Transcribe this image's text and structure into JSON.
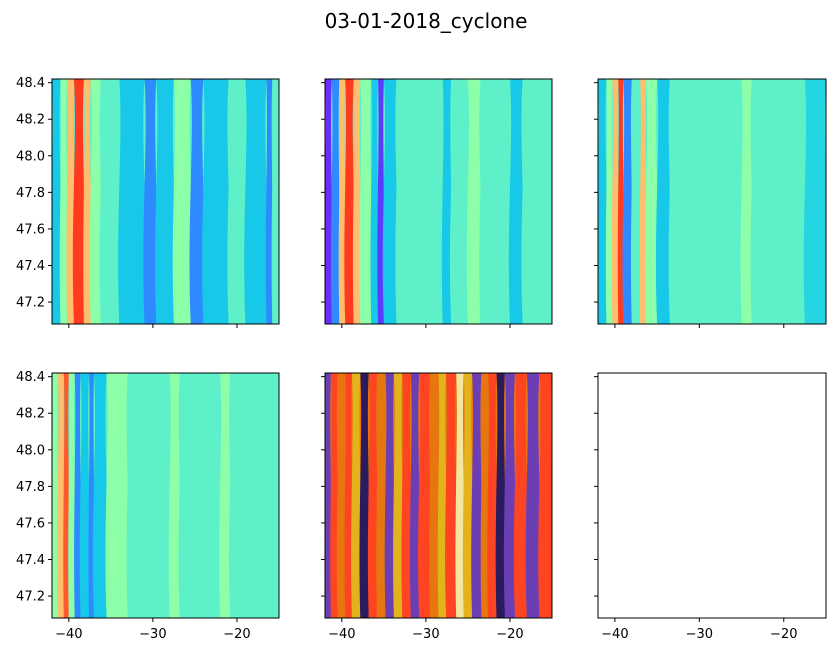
{
  "figure": {
    "title": "03-01-2018_cyclone"
  },
  "chart_data": [
    {
      "type": "contour",
      "panel": "row1-col1",
      "colormap": "rainbow",
      "xlim": [
        -42,
        -15
      ],
      "ylim": [
        47.08,
        48.42
      ],
      "x_ticks": [
        -40,
        -30,
        -20
      ],
      "y_ticks": [
        47.2,
        47.4,
        47.6,
        47.8,
        48.0,
        48.2,
        48.4
      ],
      "x_tick_labels_shown": false,
      "y_tick_labels_shown": true,
      "background": "#5ef0c8",
      "bands": [
        {
          "x0": -42,
          "x1": -41,
          "color": "#17c8e8"
        },
        {
          "x0": -41,
          "x1": -40.2,
          "color": "#8cffa8"
        },
        {
          "x0": -40.2,
          "x1": -39.4,
          "color": "#ffbe6e"
        },
        {
          "x0": -39.4,
          "x1": -38.2,
          "color": "#ff3a1e"
        },
        {
          "x0": -38.2,
          "x1": -37.4,
          "color": "#ffbe6e"
        },
        {
          "x0": -37.4,
          "x1": -36.2,
          "color": "#8cffa8"
        },
        {
          "x0": -36.2,
          "x1": -34,
          "color": "#5ef0c8"
        },
        {
          "x0": -34,
          "x1": -31,
          "color": "#17c8e8"
        },
        {
          "x0": -31,
          "x1": -29.6,
          "color": "#2e8bff"
        },
        {
          "x0": -29.6,
          "x1": -27.5,
          "color": "#17c8e8"
        },
        {
          "x0": -27.5,
          "x1": -25.5,
          "color": "#8cffa8"
        },
        {
          "x0": -25.5,
          "x1": -24,
          "color": "#2e8bff"
        },
        {
          "x0": -24,
          "x1": -21,
          "color": "#17c8e8"
        },
        {
          "x0": -21,
          "x1": -19,
          "color": "#5ef0c8"
        },
        {
          "x0": -19,
          "x1": -16.5,
          "color": "#17c8e8"
        },
        {
          "x0": -16.5,
          "x1": -15.8,
          "color": "#2e8bff"
        },
        {
          "x0": -15.8,
          "x1": -15,
          "color": "#5ef0c8"
        }
      ]
    },
    {
      "type": "contour",
      "panel": "row1-col2",
      "colormap": "rainbow",
      "xlim": [
        -42,
        -15
      ],
      "ylim": [
        47.08,
        48.42
      ],
      "x_ticks": [
        -40,
        -30,
        -20
      ],
      "y_ticks": [
        47.2,
        47.4,
        47.6,
        47.8,
        48.0,
        48.2,
        48.4
      ],
      "x_tick_labels_shown": false,
      "y_tick_labels_shown": false,
      "background": "#5ef0c8",
      "bands": [
        {
          "x0": -42,
          "x1": -41.2,
          "color": "#6a2cff"
        },
        {
          "x0": -41.2,
          "x1": -40.3,
          "color": "#2e8bff"
        },
        {
          "x0": -40.3,
          "x1": -39.6,
          "color": "#ffbe6e"
        },
        {
          "x0": -39.6,
          "x1": -38.6,
          "color": "#ff3a1e"
        },
        {
          "x0": -38.6,
          "x1": -37.8,
          "color": "#ffbe6e"
        },
        {
          "x0": -37.8,
          "x1": -36.5,
          "color": "#8cffa8"
        },
        {
          "x0": -36.5,
          "x1": -35.7,
          "color": "#17c8e8"
        },
        {
          "x0": -35.7,
          "x1": -35,
          "color": "#5b3bff"
        },
        {
          "x0": -35,
          "x1": -33.5,
          "color": "#17c8e8"
        },
        {
          "x0": -33.5,
          "x1": -28,
          "color": "#5ef0c8"
        },
        {
          "x0": -28,
          "x1": -27,
          "color": "#17c8e8"
        },
        {
          "x0": -27,
          "x1": -25,
          "color": "#5ef0c8"
        },
        {
          "x0": -25,
          "x1": -23.5,
          "color": "#8cffa8"
        },
        {
          "x0": -23.5,
          "x1": -20,
          "color": "#5ef0c8"
        },
        {
          "x0": -20,
          "x1": -18.5,
          "color": "#17c8e8"
        },
        {
          "x0": -18.5,
          "x1": -15,
          "color": "#5ef0c8"
        }
      ]
    },
    {
      "type": "contour",
      "panel": "row1-col3",
      "colormap": "rainbow",
      "xlim": [
        -42,
        -15
      ],
      "ylim": [
        47.08,
        48.42
      ],
      "x_ticks": [
        -40,
        -30,
        -20
      ],
      "y_ticks": [
        47.2,
        47.4,
        47.6,
        47.8,
        48.0,
        48.2,
        48.4
      ],
      "x_tick_labels_shown": false,
      "y_tick_labels_shown": false,
      "background": "#5ef0c8",
      "bands": [
        {
          "x0": -42,
          "x1": -41,
          "color": "#17c8e8"
        },
        {
          "x0": -41,
          "x1": -40.3,
          "color": "#8cffa8"
        },
        {
          "x0": -40.3,
          "x1": -39.6,
          "color": "#ffbe6e"
        },
        {
          "x0": -39.6,
          "x1": -39,
          "color": "#ff3a1e"
        },
        {
          "x0": -39,
          "x1": -38,
          "color": "#2e8bff"
        },
        {
          "x0": -38,
          "x1": -37,
          "color": "#5ef0c8"
        },
        {
          "x0": -37,
          "x1": -36.3,
          "color": "#ffbe6e"
        },
        {
          "x0": -36.3,
          "x1": -35,
          "color": "#8cffa8"
        },
        {
          "x0": -35,
          "x1": -33.5,
          "color": "#17c8e8"
        },
        {
          "x0": -33.5,
          "x1": -25,
          "color": "#5ef0c8"
        },
        {
          "x0": -25,
          "x1": -23.8,
          "color": "#8cffa8"
        },
        {
          "x0": -23.8,
          "x1": -17.5,
          "color": "#5ef0c8"
        },
        {
          "x0": -17.5,
          "x1": -15,
          "color": "#25d6e2"
        }
      ]
    },
    {
      "type": "contour",
      "panel": "row2-col1",
      "colormap": "rainbow",
      "xlim": [
        -42,
        -15
      ],
      "ylim": [
        47.08,
        48.42
      ],
      "x_ticks": [
        -40,
        -30,
        -20
      ],
      "y_ticks": [
        47.2,
        47.4,
        47.6,
        47.8,
        48.0,
        48.2,
        48.4
      ],
      "x_tick_labels_shown": true,
      "y_tick_labels_shown": true,
      "background": "#5ef0c8",
      "bands": [
        {
          "x0": -42,
          "x1": -41.3,
          "color": "#8cffa8"
        },
        {
          "x0": -41.3,
          "x1": -40.6,
          "color": "#ffbe6e"
        },
        {
          "x0": -40.6,
          "x1": -40,
          "color": "#ff5a2e"
        },
        {
          "x0": -40,
          "x1": -39.3,
          "color": "#8cffa8"
        },
        {
          "x0": -39.3,
          "x1": -38.6,
          "color": "#2e8bff"
        },
        {
          "x0": -38.6,
          "x1": -37.6,
          "color": "#17c8e8"
        },
        {
          "x0": -37.6,
          "x1": -37,
          "color": "#2e8bff"
        },
        {
          "x0": -37,
          "x1": -35.5,
          "color": "#17c8e8"
        },
        {
          "x0": -35.5,
          "x1": -33,
          "color": "#8cffa8"
        },
        {
          "x0": -33,
          "x1": -28,
          "color": "#5ef0c8"
        },
        {
          "x0": -28,
          "x1": -26.8,
          "color": "#8cffa8"
        },
        {
          "x0": -26.8,
          "x1": -22,
          "color": "#5ef0c8"
        },
        {
          "x0": -22,
          "x1": -20.8,
          "color": "#8cffa8"
        },
        {
          "x0": -20.8,
          "x1": -15,
          "color": "#5ef0c8"
        }
      ]
    },
    {
      "type": "contour",
      "panel": "row2-col2",
      "colormap": "CMRmap",
      "xlim": [
        -42,
        -15
      ],
      "ylim": [
        47.08,
        48.42
      ],
      "x_ticks": [
        -40,
        -30,
        -20
      ],
      "y_ticks": [
        47.2,
        47.4,
        47.6,
        47.8,
        48.0,
        48.2,
        48.4
      ],
      "x_tick_labels_shown": true,
      "y_tick_labels_shown": false,
      "background": "#e5770e",
      "bands": [
        {
          "x0": -42,
          "x1": -41.3,
          "color": "#6b3fb3"
        },
        {
          "x0": -41.3,
          "x1": -40.5,
          "color": "#ff4422"
        },
        {
          "x0": -40.5,
          "x1": -39.6,
          "color": "#e5770e"
        },
        {
          "x0": -39.6,
          "x1": -38.8,
          "color": "#ff4422"
        },
        {
          "x0": -38.8,
          "x1": -37.8,
          "color": "#e2b31c"
        },
        {
          "x0": -37.8,
          "x1": -36.8,
          "color": "#2a1a5e"
        },
        {
          "x0": -36.8,
          "x1": -35.8,
          "color": "#ff4422"
        },
        {
          "x0": -35.8,
          "x1": -34.8,
          "color": "#e5770e"
        },
        {
          "x0": -34.8,
          "x1": -33.8,
          "color": "#6b3fb3"
        },
        {
          "x0": -33.8,
          "x1": -32.8,
          "color": "#e2b31c"
        },
        {
          "x0": -32.8,
          "x1": -31.8,
          "color": "#ff4422"
        },
        {
          "x0": -31.8,
          "x1": -30.8,
          "color": "#6b3fb3"
        },
        {
          "x0": -30.8,
          "x1": -29.5,
          "color": "#ff4422"
        },
        {
          "x0": -29.5,
          "x1": -28.5,
          "color": "#e5770e"
        },
        {
          "x0": -28.5,
          "x1": -27.6,
          "color": "#e2b31c"
        },
        {
          "x0": -27.6,
          "x1": -26.4,
          "color": "#ff4422"
        },
        {
          "x0": -26.4,
          "x1": -25.5,
          "color": "#f4e6a0"
        },
        {
          "x0": -25.5,
          "x1": -24.5,
          "color": "#e2b31c"
        },
        {
          "x0": -24.5,
          "x1": -23.4,
          "color": "#6b3fb3"
        },
        {
          "x0": -23.4,
          "x1": -22.6,
          "color": "#e5770e"
        },
        {
          "x0": -22.6,
          "x1": -21.6,
          "color": "#ff4422"
        },
        {
          "x0": -21.6,
          "x1": -20.6,
          "color": "#2a1a5e"
        },
        {
          "x0": -20.6,
          "x1": -19.4,
          "color": "#6b3fb3"
        },
        {
          "x0": -19.4,
          "x1": -18,
          "color": "#ff4422"
        },
        {
          "x0": -18,
          "x1": -16.5,
          "color": "#6b3fb3"
        },
        {
          "x0": -16.5,
          "x1": -15,
          "color": "#ff4422"
        }
      ]
    },
    {
      "type": "empty",
      "panel": "row2-col3",
      "xlim": [
        -42,
        -15
      ],
      "ylim": [
        47.08,
        48.42
      ],
      "x_ticks": [
        -40,
        -30,
        -20
      ],
      "y_ticks": [
        47.2,
        47.4,
        47.6,
        47.8,
        48.0,
        48.2,
        48.4
      ],
      "x_tick_labels_shown": true,
      "y_tick_labels_shown": false,
      "background": "#ffffff",
      "bands": []
    }
  ]
}
